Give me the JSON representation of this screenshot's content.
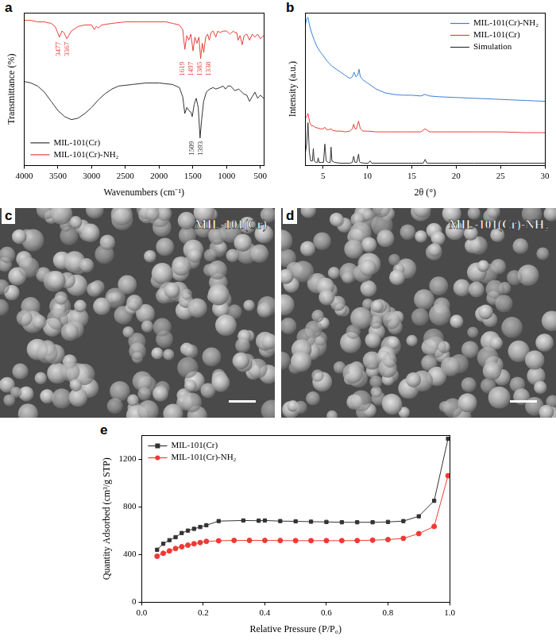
{
  "chart_data": [
    {
      "panel": "a",
      "type": "line",
      "x_label": "Wavenumbers (cm⁻¹)",
      "y_label": "Transmittance (%)",
      "xlim": [
        4000,
        450
      ],
      "xticks": [
        4000,
        3500,
        3000,
        2500,
        2000,
        1500,
        1000,
        500
      ],
      "ylim": [
        0,
        100
      ],
      "tick_labels": "x",
      "grid": false,
      "legend": "lower left",
      "series": [
        {
          "name": "MIL-101(Cr)",
          "color": "#333333",
          "x": [
            4000,
            3900,
            3800,
            3700,
            3600,
            3500,
            3400,
            3300,
            3200,
            3100,
            3000,
            2900,
            2800,
            2700,
            2600,
            2400,
            2200,
            2000,
            1800,
            1700,
            1650,
            1619,
            1590,
            1560,
            1530,
            1509,
            1480,
            1450,
            1420,
            1393,
            1370,
            1340,
            1300,
            1250,
            1200,
            1160,
            1100,
            1050,
            1017,
            980,
            940,
            880,
            820,
            750,
            700,
            660,
            620,
            580,
            540,
            500,
            450
          ],
          "values": [
            55,
            54,
            52,
            48,
            42,
            36,
            32,
            30,
            31,
            34,
            38,
            43,
            47,
            50,
            52,
            53,
            54,
            54,
            53,
            51,
            45,
            34,
            38,
            36,
            35,
            32,
            40,
            44,
            38,
            18,
            30,
            42,
            48,
            50,
            51,
            50,
            51,
            52,
            50,
            52,
            52,
            49,
            50,
            47,
            46,
            42,
            45,
            48,
            44,
            46,
            44
          ],
          "peak_labels": [
            1509,
            1393
          ]
        },
        {
          "name": "MIL-101(Cr)-NH₂",
          "color": "#e8403a",
          "x": [
            4000,
            3900,
            3800,
            3700,
            3600,
            3540,
            3477,
            3440,
            3410,
            3367,
            3300,
            3200,
            3100,
            3000,
            2960,
            2930,
            2900,
            2850,
            2700,
            2500,
            2300,
            2100,
            1900,
            1800,
            1700,
            1650,
            1619,
            1590,
            1560,
            1530,
            1497,
            1470,
            1440,
            1410,
            1385,
            1360,
            1338,
            1310,
            1280,
            1257,
            1230,
            1200,
            1160,
            1130,
            1100,
            1050,
            1000,
            950,
            900,
            880,
            850,
            830,
            800,
            770,
            740,
            700,
            660,
            620,
            580,
            540,
            500,
            450
          ],
          "values": [
            95,
            95,
            94,
            94,
            93,
            91,
            84,
            88,
            87,
            83,
            88,
            91,
            92,
            92,
            89,
            91,
            90,
            92,
            93,
            94,
            94,
            94,
            94,
            93,
            92,
            89,
            76,
            85,
            82,
            86,
            75,
            84,
            80,
            84,
            70,
            80,
            74,
            84,
            86,
            82,
            87,
            88,
            84,
            88,
            87,
            88,
            88,
            86,
            88,
            87,
            87,
            82,
            85,
            79,
            85,
            86,
            82,
            86,
            84,
            86,
            83,
            85
          ],
          "peak_labels": [
            3477,
            3367,
            1619,
            1497,
            1385,
            1338
          ]
        }
      ]
    },
    {
      "panel": "b",
      "type": "line",
      "x_label": "2θ (°)",
      "y_label": "Intensity (a.u.)",
      "xlim": [
        3,
        30
      ],
      "xticks": [
        5,
        10,
        15,
        20,
        25,
        30
      ],
      "ylim": [
        0,
        100
      ],
      "tick_labels": "x",
      "grid": false,
      "legend": "upper right",
      "series": [
        {
          "name": "MIL-101(Cr)-NH₂",
          "color": "#3a7fd5",
          "x": [
            3,
            3.15,
            3.3,
            3.5,
            3.7,
            4,
            4.3,
            4.6,
            5,
            5.5,
            6,
            6.5,
            7,
            7.5,
            8,
            8.3,
            8.5,
            8.7,
            8.9,
            9.05,
            9.2,
            9.5,
            10,
            11,
            12,
            13,
            14,
            15,
            16,
            16.5,
            17,
            18,
            20,
            22,
            24,
            26,
            28,
            30
          ],
          "values": [
            92,
            96,
            97,
            91,
            87,
            82,
            78,
            75,
            72,
            68,
            65,
            63,
            61,
            59,
            57,
            58,
            61,
            58,
            59,
            63,
            58,
            56,
            54,
            50,
            47.5,
            46.5,
            46,
            46,
            45.5,
            46.5,
            45.5,
            45,
            44.5,
            44,
            43.5,
            43,
            42.5,
            42
          ]
        },
        {
          "name": "MIL-101(Cr)",
          "color": "#e8403a",
          "x": [
            3,
            3.15,
            3.3,
            3.5,
            3.7,
            3.9,
            4.1,
            4.4,
            4.7,
            5.0,
            5.2,
            5.4,
            5.7,
            5.9,
            6.1,
            6.5,
            7,
            7.5,
            8.0,
            8.3,
            8.45,
            8.6,
            8.75,
            9.0,
            9.2,
            9.5,
            10,
            11,
            12,
            14,
            16,
            16.5,
            17,
            19,
            22,
            25,
            28,
            30
          ],
          "values": [
            31,
            32,
            34,
            28,
            26,
            26,
            25,
            24.5,
            24,
            24,
            25,
            23.5,
            23.5,
            24,
            23,
            22.5,
            22.5,
            22,
            22.5,
            24,
            27,
            24,
            24,
            29,
            24,
            22.5,
            22.5,
            22,
            22,
            22,
            22,
            24,
            22,
            22,
            22,
            22,
            21.5,
            21.5
          ]
        },
        {
          "name": "Simulation",
          "color": "#333333",
          "x": [
            3,
            3.15,
            3.3,
            3.45,
            3.6,
            3.8,
            3.9,
            4.0,
            4.2,
            4.35,
            4.45,
            4.55,
            4.8,
            5.05,
            5.2,
            5.35,
            5.6,
            5.8,
            5.9,
            6.0,
            6.3,
            7,
            8.0,
            8.3,
            8.45,
            8.6,
            8.8,
            9.0,
            9.1,
            9.2,
            9.6,
            10.1,
            10.3,
            10.5,
            12,
            15,
            16.3,
            16.5,
            16.7,
            18,
            22,
            26,
            30
          ],
          "values": [
            8,
            14,
            28,
            9,
            3,
            3,
            11,
            3,
            2,
            2,
            5,
            2,
            2,
            2,
            14,
            3,
            2,
            2,
            12,
            3,
            2,
            1.5,
            1.5,
            2,
            6,
            2,
            2,
            7.5,
            2.5,
            2,
            1.5,
            1.5,
            3,
            1.5,
            1.5,
            1.5,
            1.5,
            4,
            1.5,
            1.5,
            1.5,
            1.5,
            1.5
          ]
        }
      ]
    },
    {
      "panel": "e",
      "type": "line",
      "x_label": "Relative Pressure (P/P₀)",
      "y_label": "Quantity Adsorbed (cm³/g STP)",
      "xlim": [
        0,
        1
      ],
      "xticks": [
        {
          "value": 0,
          "label": "0.0"
        },
        0.2,
        0.4,
        0.6,
        0.8,
        {
          "value": 1,
          "label": "1.0"
        }
      ],
      "ylim": [
        0,
        1400
      ],
      "yticks": [
        0,
        400,
        800,
        1200
      ],
      "grid": false,
      "legend": "upper left",
      "series": [
        {
          "name": "MIL-101(Cr)",
          "color": "#333333",
          "marker": "square",
          "x": [
            0.05,
            0.07,
            0.09,
            0.11,
            0.13,
            0.15,
            0.17,
            0.19,
            0.21,
            0.25,
            0.33,
            0.38,
            0.4,
            0.45,
            0.5,
            0.55,
            0.6,
            0.65,
            0.7,
            0.75,
            0.8,
            0.85,
            0.9,
            0.95,
            0.995
          ],
          "values": [
            440,
            490,
            520,
            545,
            580,
            600,
            615,
            630,
            645,
            680,
            685,
            683,
            685,
            680,
            678,
            675,
            673,
            670,
            670,
            670,
            673,
            680,
            720,
            850,
            1370
          ]
        },
        {
          "name": "MIL-101(Cr)-NH₂",
          "color": "#ee3a33",
          "marker": "circle",
          "x": [
            0.05,
            0.07,
            0.09,
            0.11,
            0.13,
            0.15,
            0.17,
            0.19,
            0.21,
            0.25,
            0.3,
            0.35,
            0.4,
            0.45,
            0.5,
            0.55,
            0.6,
            0.65,
            0.7,
            0.75,
            0.8,
            0.85,
            0.9,
            0.95,
            0.995
          ],
          "values": [
            385,
            410,
            430,
            450,
            465,
            478,
            490,
            500,
            510,
            515,
            518,
            518,
            518,
            517,
            516,
            516,
            516,
            516,
            517,
            520,
            525,
            535,
            575,
            635,
            1060
          ]
        }
      ]
    }
  ],
  "images": [
    {
      "panel": "c",
      "label": "MIL-101(Cr)"
    },
    {
      "panel": "d",
      "label": "MIL-101(Cr)-NH₂"
    }
  ]
}
